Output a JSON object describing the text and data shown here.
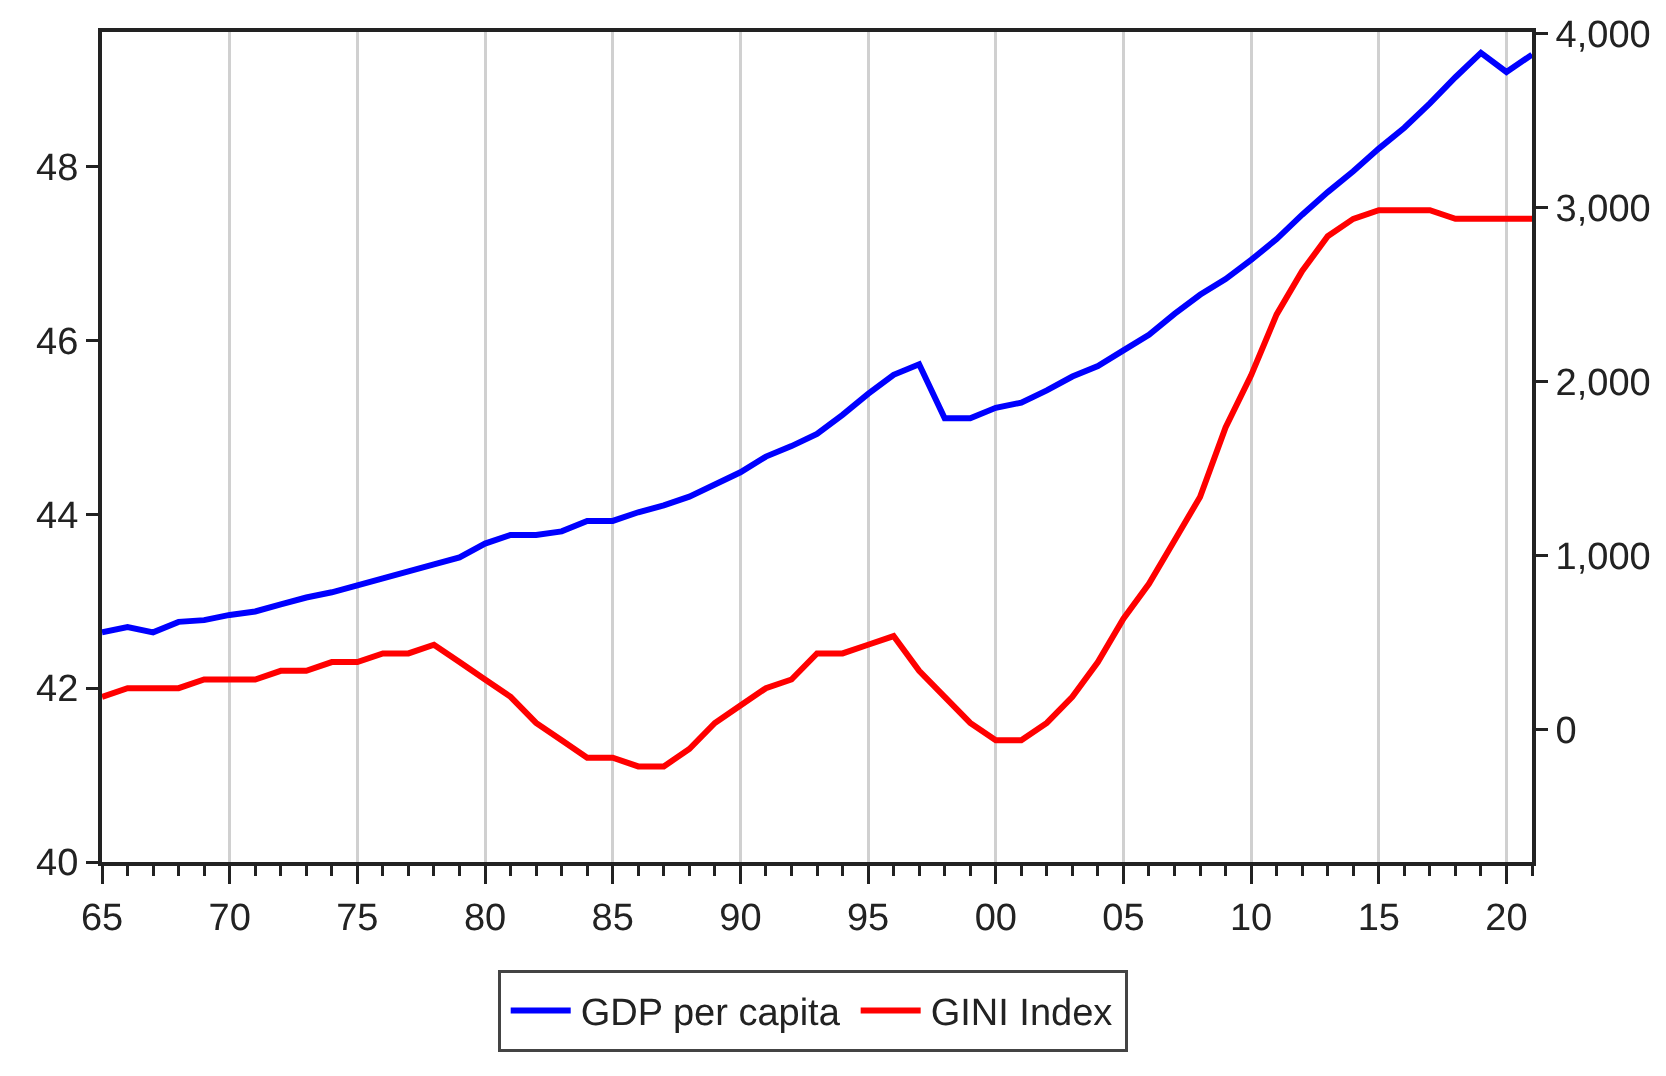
{
  "chart_data": {
    "type": "line",
    "x": [
      1965,
      1966,
      1967,
      1968,
      1969,
      1970,
      1971,
      1972,
      1973,
      1974,
      1975,
      1976,
      1977,
      1978,
      1979,
      1980,
      1981,
      1982,
      1983,
      1984,
      1985,
      1986,
      1987,
      1988,
      1989,
      1990,
      1991,
      1992,
      1993,
      1994,
      1995,
      1996,
      1997,
      1998,
      1999,
      2000,
      2001,
      2002,
      2003,
      2004,
      2005,
      2006,
      2007,
      2008,
      2009,
      2010,
      2011,
      2012,
      2013,
      2014,
      2015,
      2016,
      2017,
      2018,
      2019,
      2020,
      2021
    ],
    "series": [
      {
        "name": "GDP per capita",
        "color": "#0000ff",
        "axis": "y2",
        "values": [
          560,
          590,
          560,
          620,
          630,
          660,
          680,
          720,
          760,
          790,
          830,
          870,
          910,
          950,
          990,
          1070,
          1120,
          1120,
          1140,
          1200,
          1200,
          1250,
          1290,
          1340,
          1410,
          1480,
          1570,
          1630,
          1700,
          1810,
          1930,
          2040,
          2100,
          1790,
          1790,
          1850,
          1880,
          1950,
          2030,
          2090,
          2180,
          2270,
          2390,
          2500,
          2590,
          2700,
          2820,
          2960,
          3090,
          3210,
          3340,
          3460,
          3600,
          3750,
          3890,
          3780,
          3880
        ]
      },
      {
        "name": "GINI Index",
        "color": "#ff0000",
        "axis": "y",
        "values": [
          41.9,
          42.0,
          42.0,
          42.0,
          42.1,
          42.1,
          42.1,
          42.2,
          42.2,
          42.3,
          42.3,
          42.4,
          42.4,
          42.5,
          42.3,
          42.1,
          41.9,
          41.6,
          41.4,
          41.2,
          41.2,
          41.1,
          41.1,
          41.3,
          41.6,
          41.8,
          42.0,
          42.1,
          42.4,
          42.4,
          42.5,
          42.6,
          42.2,
          41.9,
          41.6,
          41.4,
          41.4,
          41.6,
          41.9,
          42.3,
          42.8,
          43.2,
          43.7,
          44.2,
          45.0,
          45.6,
          46.3,
          46.8,
          47.2,
          47.4,
          47.5,
          47.5,
          47.5,
          47.4,
          47.4,
          47.4,
          47.4
        ]
      }
    ],
    "xlim": [
      1965,
      2021
    ],
    "xticks": [
      {
        "value": 1965,
        "label": "65"
      },
      {
        "value": 1966,
        "label": null
      },
      {
        "value": 1967,
        "label": null
      },
      {
        "value": 1968,
        "label": null
      },
      {
        "value": 1969,
        "label": null
      },
      {
        "value": 1970,
        "label": "70"
      },
      {
        "value": 1971,
        "label": null
      },
      {
        "value": 1972,
        "label": null
      },
      {
        "value": 1973,
        "label": null
      },
      {
        "value": 1974,
        "label": null
      },
      {
        "value": 1975,
        "label": "75"
      },
      {
        "value": 1976,
        "label": null
      },
      {
        "value": 1977,
        "label": null
      },
      {
        "value": 1978,
        "label": null
      },
      {
        "value": 1979,
        "label": null
      },
      {
        "value": 1980,
        "label": "80"
      },
      {
        "value": 1981,
        "label": null
      },
      {
        "value": 1982,
        "label": null
      },
      {
        "value": 1983,
        "label": null
      },
      {
        "value": 1984,
        "label": null
      },
      {
        "value": 1985,
        "label": "85"
      },
      {
        "value": 1986,
        "label": null
      },
      {
        "value": 1987,
        "label": null
      },
      {
        "value": 1988,
        "label": null
      },
      {
        "value": 1989,
        "label": null
      },
      {
        "value": 1990,
        "label": "90"
      },
      {
        "value": 1991,
        "label": null
      },
      {
        "value": 1992,
        "label": null
      },
      {
        "value": 1993,
        "label": null
      },
      {
        "value": 1994,
        "label": null
      },
      {
        "value": 1995,
        "label": "95"
      },
      {
        "value": 1996,
        "label": null
      },
      {
        "value": 1997,
        "label": null
      },
      {
        "value": 1998,
        "label": null
      },
      {
        "value": 1999,
        "label": null
      },
      {
        "value": 2000,
        "label": "00"
      },
      {
        "value": 2001,
        "label": null
      },
      {
        "value": 2002,
        "label": null
      },
      {
        "value": 2003,
        "label": null
      },
      {
        "value": 2004,
        "label": null
      },
      {
        "value": 2005,
        "label": "05"
      },
      {
        "value": 2006,
        "label": null
      },
      {
        "value": 2007,
        "label": null
      },
      {
        "value": 2008,
        "label": null
      },
      {
        "value": 2009,
        "label": null
      },
      {
        "value": 2010,
        "label": "10"
      },
      {
        "value": 2011,
        "label": null
      },
      {
        "value": 2012,
        "label": null
      },
      {
        "value": 2013,
        "label": null
      },
      {
        "value": 2014,
        "label": null
      },
      {
        "value": 2015,
        "label": "15"
      },
      {
        "value": 2016,
        "label": null
      },
      {
        "value": 2017,
        "label": null
      },
      {
        "value": 2018,
        "label": null
      },
      {
        "value": 2019,
        "label": null
      },
      {
        "value": 2020,
        "label": "20"
      },
      {
        "value": 2021,
        "label": null
      }
    ],
    "ylim": [
      40,
      49.55
    ],
    "yticks": [
      40,
      42,
      44,
      46,
      48
    ],
    "y2lim": [
      -760,
      4010
    ],
    "y2ticks": [
      0,
      {
        "value": 1000,
        "label": "1,000"
      },
      {
        "value": 2000,
        "label": "2,000"
      },
      {
        "value": 3000,
        "label": "3,000"
      },
      {
        "value": 4000,
        "label": "4,000"
      }
    ],
    "grid": "x",
    "legend": "bottom"
  }
}
